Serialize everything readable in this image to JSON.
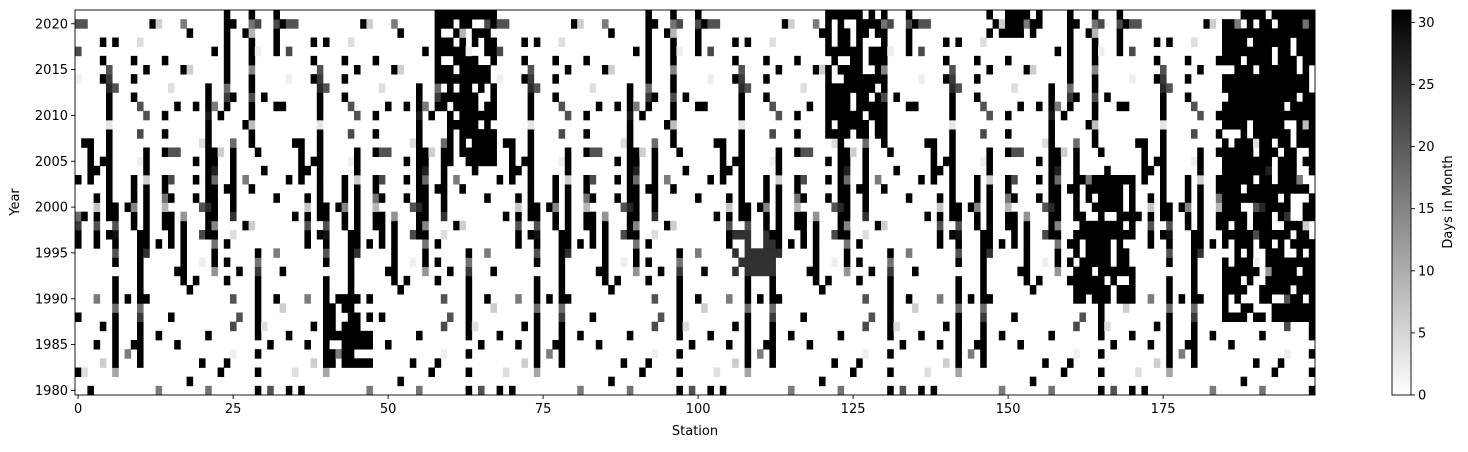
{
  "chart_data": {
    "type": "heatmap",
    "title": "",
    "xlabel": "Station",
    "ylabel": "Year",
    "colorbar_label": "Days in Month",
    "colormap": "binary",
    "color_low": "#ffffff",
    "color_high": "#000000",
    "x_range": [
      0,
      199
    ],
    "y_range": [
      1980,
      2021
    ],
    "value_range": [
      0,
      31
    ],
    "x_ticks": [
      0,
      25,
      50,
      75,
      100,
      125,
      150,
      175
    ],
    "y_ticks": [
      1980,
      1985,
      1990,
      1995,
      2000,
      2005,
      2010,
      2015,
      2020
    ],
    "colorbar_ticks": [
      0,
      5,
      10,
      15,
      20,
      25,
      30
    ],
    "stations": 200,
    "years": 42,
    "pattern_note": "Stations with months of recorded days per year; dense black bands around stations 60-66, 121-130, 150-155, 185-199.",
    "dense_clusters": [
      {
        "x0": 59,
        "x1": 67,
        "y0": 2005,
        "y1": 2021,
        "v": 31
      },
      {
        "x0": 121,
        "x1": 130,
        "y0": 2008,
        "y1": 2021,
        "v": 31
      },
      {
        "x0": 147,
        "x1": 155,
        "y0": 2019,
        "y1": 2021,
        "v": 31
      },
      {
        "x0": 185,
        "x1": 199,
        "y0": 1988,
        "y1": 2021,
        "v": 31
      },
      {
        "x0": 161,
        "x1": 170,
        "y0": 1990,
        "y1": 2003,
        "v": 31
      },
      {
        "x0": 40,
        "x1": 47,
        "y0": 1983,
        "y1": 1990,
        "v": 31
      },
      {
        "x0": 106,
        "x1": 112,
        "y0": 1993,
        "y1": 1997,
        "v": 25
      }
    ]
  }
}
